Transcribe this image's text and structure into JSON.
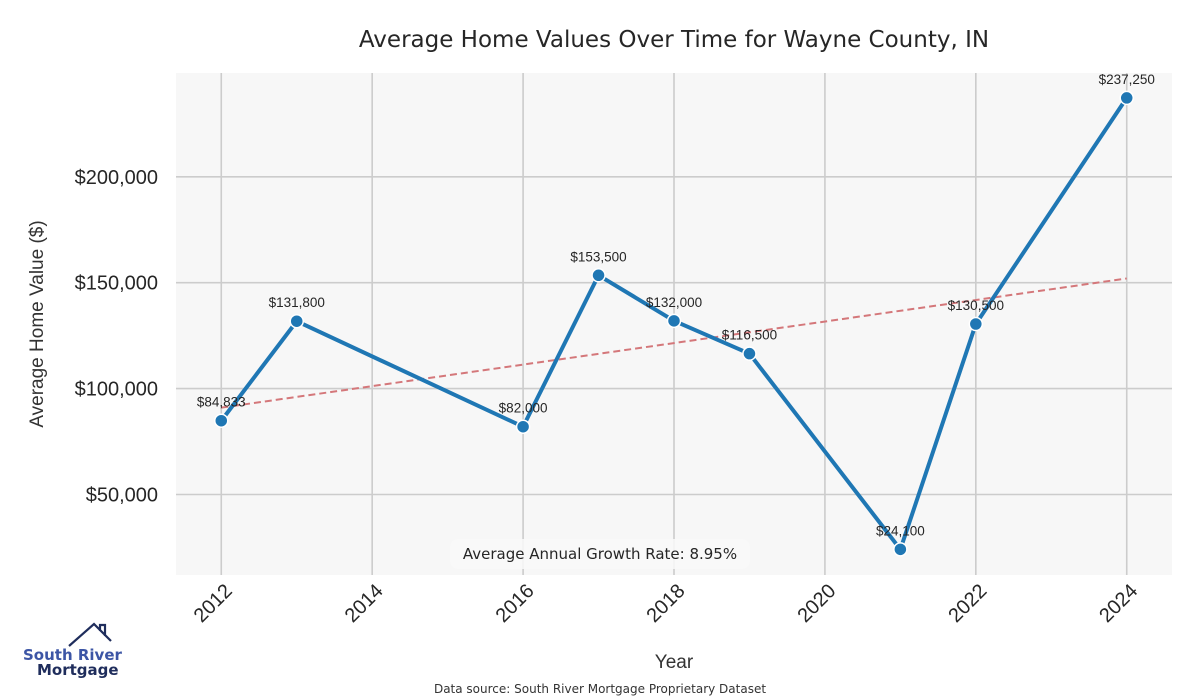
{
  "chart_data": {
    "type": "line",
    "title": "Average Home Values Over Time for Wayne County, IN",
    "xlabel": "Year",
    "ylabel": "Average Home Value ($)",
    "x": [
      2012,
      2013,
      2016,
      2017,
      2018,
      2019,
      2021,
      2022,
      2024
    ],
    "series": [
      {
        "name": "Average Home Value",
        "values": [
          84833,
          131800,
          82000,
          153500,
          132000,
          116500,
          24100,
          130500,
          237250
        ],
        "labels": [
          "$84,833",
          "$131,800",
          "$82,000",
          "$153,500",
          "$132,000",
          "$116,500",
          "$24,100",
          "$130,500",
          "$237,250"
        ],
        "color": "#1f77b4"
      },
      {
        "name": "Trend",
        "style": "dashed",
        "x": [
          2012,
          2024
        ],
        "values": [
          91000,
          152000
        ],
        "color": "#d4777a"
      }
    ],
    "xticks": [
      2012,
      2014,
      2016,
      2018,
      2020,
      2022,
      2024
    ],
    "xtick_labels": [
      "2012",
      "2014",
      "2016",
      "2018",
      "2020",
      "2022",
      "2024"
    ],
    "yticks": [
      50000,
      100000,
      150000,
      200000
    ],
    "ytick_labels": [
      "$50,000",
      "$100,000",
      "$150,000",
      "$200,000"
    ],
    "xlim": [
      2011.4,
      2024.6
    ],
    "ylim": [
      12000,
      249000
    ],
    "grid": true,
    "annotation": "Average Annual Growth Rate: 8.95%",
    "source": "Data source: South River Mortgage Proprietary Dataset"
  },
  "logo": {
    "line1": "South River",
    "line2": "Mortgage"
  },
  "colors": {
    "plot_bg": "#f7f7f7",
    "grid": "#cccccc",
    "line": "#1f77b4",
    "trend": "#d4777a"
  }
}
